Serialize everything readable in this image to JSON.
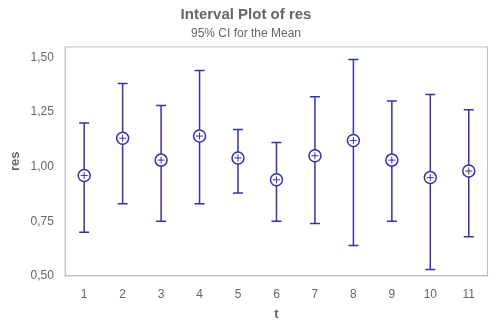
{
  "chart_data": {
    "type": "scatter",
    "title": "Interval Plot of res",
    "subtitle": "95% CI for the Mean",
    "xlabel": "t",
    "ylabel": "res",
    "x": [
      1,
      2,
      3,
      4,
      5,
      6,
      7,
      8,
      9,
      10,
      11
    ],
    "values": [
      0.96,
      1.13,
      1.03,
      1.14,
      1.04,
      0.94,
      1.05,
      1.12,
      1.03,
      0.95,
      0.98
    ],
    "ci_lower": [
      0.7,
      0.83,
      0.75,
      0.83,
      0.88,
      0.75,
      0.74,
      0.64,
      0.75,
      0.53,
      0.68
    ],
    "ci_upper": [
      1.2,
      1.38,
      1.28,
      1.44,
      1.17,
      1.11,
      1.32,
      1.49,
      1.3,
      1.33,
      1.26
    ],
    "xlim": [
      0.5,
      11.5
    ],
    "ylim": [
      0.5,
      1.55
    ],
    "xticks": [
      1,
      2,
      3,
      4,
      5,
      6,
      7,
      8,
      9,
      10,
      11
    ],
    "yticks": [
      {
        "value": 0.5,
        "label": "0,50"
      },
      {
        "value": 0.75,
        "label": "0,75"
      },
      {
        "value": 1.0,
        "label": "1,00"
      },
      {
        "value": 1.25,
        "label": "1,25"
      },
      {
        "value": 1.5,
        "label": "1,50"
      }
    ],
    "color": "#3333aa",
    "marker": "circle",
    "grid": false
  }
}
